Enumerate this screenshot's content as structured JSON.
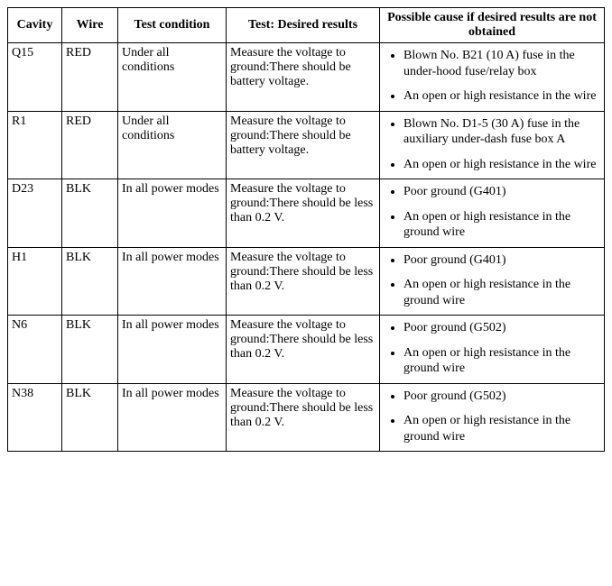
{
  "columns": [
    "Cavity",
    "Wire",
    "Test condition",
    "Test: Desired results",
    "Possible cause if desired results are not obtained"
  ],
  "rows": [
    {
      "cavity": "Q15",
      "wire": "RED",
      "condition": "Under all conditions",
      "test": "Measure the voltage to ground:There should be battery voltage.",
      "causes": [
        "Blown No. B21 (10 A) fuse in the under-hood fuse/relay box",
        "An open or high resistance in the wire"
      ]
    },
    {
      "cavity": "R1",
      "wire": "RED",
      "condition": "Under all conditions",
      "test": "Measure the voltage to ground:There should be battery voltage.",
      "causes": [
        "Blown No. D1-5 (30 A) fuse in the auxiliary under-dash fuse box A",
        "An open or high resistance in the wire"
      ]
    },
    {
      "cavity": "D23",
      "wire": "BLK",
      "condition": "In all power modes",
      "test": "Measure the voltage to ground:There should be less than 0.2 V.",
      "causes": [
        "Poor ground (G401)",
        "An open or high resistance in the ground wire"
      ]
    },
    {
      "cavity": "H1",
      "wire": "BLK",
      "condition": "In all power modes",
      "test": "Measure the voltage to ground:There should be less than 0.2 V.",
      "causes": [
        "Poor ground (G401)",
        "An open or high resistance in the ground wire"
      ]
    },
    {
      "cavity": "N6",
      "wire": "BLK",
      "condition": "In all power modes",
      "test": "Measure the voltage to ground:There should be less than 0.2 V.",
      "causes": [
        "Poor ground (G502)",
        "An open or high resistance in the ground wire"
      ]
    },
    {
      "cavity": "N38",
      "wire": "BLK",
      "condition": "In all power modes",
      "test": "Measure the voltage to ground:There should be less than 0.2 V.",
      "causes": [
        "Poor ground (G502)",
        "An open or high resistance in the ground wire"
      ]
    }
  ]
}
